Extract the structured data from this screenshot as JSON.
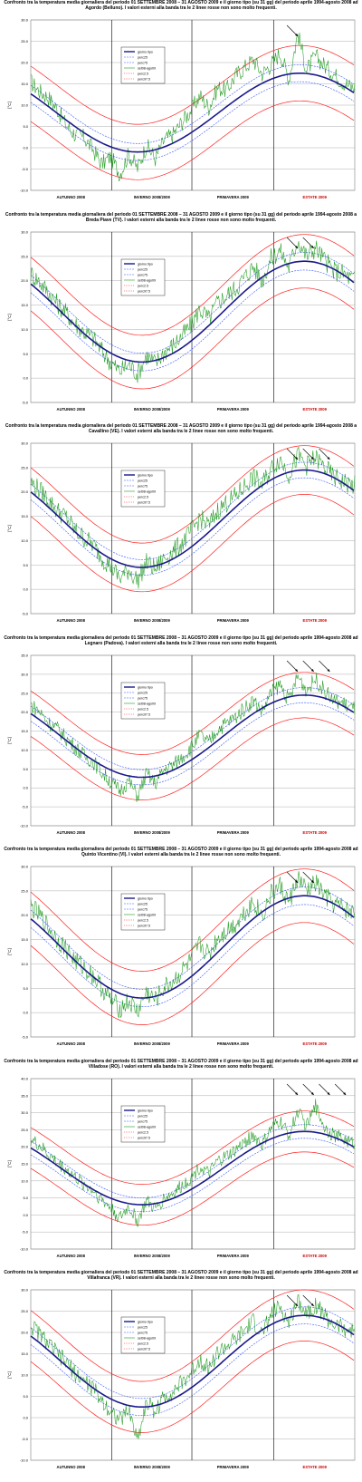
{
  "season_labels": [
    "AUTUNNO 2008",
    "INVERNO 2008/2009",
    "PRIMAVERA 2009",
    "ESTATE 2009"
  ],
  "season_colors": [
    "#000000",
    "#000000",
    "#000000",
    "#cc0000"
  ],
  "y_axis_label": "[°C]",
  "legend_labels": [
    "giorno tipo",
    "perc25",
    "perc75",
    "set08-ago09",
    "perc2.5",
    "perc97.5"
  ],
  "colors": {
    "typical": "#1a1a8c",
    "perc_inner": "#3355ff",
    "observed": "#1f9a1f",
    "perc_outer": "#ff2020",
    "grid": "#999999",
    "season_line": "#000000"
  },
  "chart_data": [
    {
      "type": "line",
      "title": "Confronto tra la temperatura media giornaliera del periodo 01 SETTEMBRE 2008 – 31 AGOSTO 2009 e il giorno tipo (su 31 gg) del periodo aprile 1994-agosto 2008 ad Agordo (Belluno). I valori esterni alla banda tra le 2 linee rosse non sono molto frequenti.",
      "yticks": [
        "30.0",
        "25.0",
        "20.0",
        "15.0",
        "10.0",
        "5.0",
        "0.0",
        "-5.0",
        "-10.0"
      ],
      "ylim": [
        -10,
        30
      ],
      "typical": {
        "summer": 17.5,
        "winter": -1.0,
        "min_day": 120,
        "max_day": 330
      },
      "band_inner": 2.0,
      "band_outer": 6.5,
      "observed_sample_per_10_days": [
        15.5,
        13.2,
        11.8,
        9.0,
        5.2,
        3.1,
        2.4,
        -0.5,
        -3.8,
        -2.0,
        -6.2,
        -1.5,
        -4.8,
        0.6,
        -2.5,
        1.8,
        3.2,
        6.1,
        8.8,
        12.2,
        9.5,
        14.1,
        13.6,
        16.9,
        18.8,
        20.7,
        17.4,
        19.6,
        22.3,
        16.1,
        26.8,
        18.2,
        21.5,
        19.3,
        17.4,
        15.6,
        14.2
      ],
      "arrows": 1
    },
    {
      "type": "line",
      "title": "Confronto tra la temperatura media giornaliera del periodo 01 SETTEMBRE 2008 – 31 AGOSTO 2009 e il giorno tipo (su 31 gg) del periodo aprile 1994-agosto 2008 a Breda Piave (TV). I valori esterni alla banda tra le 2 linee rosse non sono molto frequenti.",
      "yticks": [
        "30.0",
        "25.0",
        "20.0",
        "15.0",
        "10.0",
        "5.0",
        "0.0",
        "-5.0"
      ],
      "ylim": [
        -5,
        30
      ],
      "typical": {
        "summer": 24.0,
        "winter": 3.3,
        "min_day": 125,
        "max_day": 330
      },
      "band_inner": 1.8,
      "band_outer": 5.5,
      "observed_sample_per_10_days": [
        21.5,
        19.8,
        17.6,
        15.2,
        13.4,
        11.1,
        9.5,
        8.2,
        5.6,
        3.2,
        1.4,
        2.8,
        0.9,
        4.6,
        3.0,
        5.4,
        6.8,
        8.7,
        10.9,
        14.2,
        12.1,
        15.6,
        17.0,
        18.4,
        20.7,
        22.9,
        20.1,
        24.6,
        26.2,
        22.8,
        28.4,
        25.0,
        26.8,
        24.3,
        22.1,
        21.6,
        20.4
      ],
      "arrows": 2
    },
    {
      "type": "line",
      "title": "Confronto tra la temperatura media giornaliera del periodo 01 SETTEMBRE 2008 – 31 AGOSTO 2009 e il giorno tipo (su 31 gg) del periodo aprile 1994-agosto 2008 a Cavallino (VE). I valori esterni alla banda tra le 2 linee rosse non sono molto frequenti.",
      "yticks": [
        "30.0",
        "25.0",
        "20.0",
        "15.0",
        "10.0",
        "5.0",
        "0.0",
        "-5.0"
      ],
      "ylim": [
        -5,
        30
      ],
      "typical": {
        "summer": 24.5,
        "winter": 4.5,
        "min_day": 125,
        "max_day": 330
      },
      "band_inner": 1.6,
      "band_outer": 5.0,
      "observed_sample_per_10_days": [
        22.0,
        20.4,
        18.3,
        16.1,
        14.8,
        12.0,
        10.6,
        9.1,
        6.5,
        4.7,
        2.2,
        4.0,
        1.8,
        5.5,
        4.1,
        6.4,
        7.7,
        9.5,
        11.8,
        14.6,
        13.0,
        16.2,
        17.8,
        19.1,
        21.2,
        23.0,
        21.5,
        24.7,
        26.8,
        23.6,
        27.4,
        25.4,
        27.0,
        25.0,
        23.1,
        22.2,
        21.3
      ],
      "arrows": 3
    },
    {
      "type": "line",
      "title": "Confronto tra la temperatura media giornaliera del periodo 01 SETTEMBRE 2008 – 31 AGOSTO 2009 e il giorno tipo (su 31 gg) del periodo aprile 1994-agosto 2008 ad Legnaro (Padova). I valori esterni alla banda tra le 2 linee rosse non sono molto frequenti.",
      "yticks": [
        "35.0",
        "30.0",
        "25.0",
        "20.0",
        "15.0",
        "10.0",
        "5.0",
        "0.0",
        "-5.0",
        "-10.0"
      ],
      "ylim": [
        -10,
        35
      ],
      "typical": {
        "summer": 24.5,
        "winter": 2.8,
        "min_day": 125,
        "max_day": 330
      },
      "band_inner": 2.0,
      "band_outer": 6.0,
      "observed_sample_per_10_days": [
        22.0,
        20.1,
        17.2,
        15.6,
        13.0,
        10.8,
        8.4,
        7.0,
        4.1,
        1.5,
        -0.8,
        1.9,
        -2.2,
        3.6,
        1.2,
        4.8,
        6.0,
        8.2,
        10.6,
        14.0,
        11.8,
        15.5,
        17.1,
        18.7,
        21.0,
        23.1,
        20.2,
        25.0,
        27.3,
        23.0,
        29.5,
        25.8,
        28.8,
        25.6,
        23.0,
        22.5,
        21.0
      ],
      "arrows": 3
    },
    {
      "type": "line",
      "title": "Confronto tra la temperatura media giornaliera del periodo 01 SETTEMBRE 2008 – 31 AGOSTO 2009 e il giorno tipo (su 31 gg) del periodo aprile 1994-agosto 2008 ad Quinto Vicentino (VI). I valori esterni alla banda tra le 2 linee rosse non sono molto frequenti.",
      "yticks": [
        "30.0",
        "25.0",
        "20.0",
        "15.0",
        "10.0",
        "5.0",
        "0.0",
        "-5.0"
      ],
      "ylim": [
        -5,
        30
      ],
      "typical": {
        "summer": 24.0,
        "winter": 3.0,
        "min_day": 125,
        "max_day": 330
      },
      "band_inner": 1.8,
      "band_outer": 5.5,
      "observed_sample_per_10_days": [
        21.8,
        19.9,
        17.5,
        15.0,
        13.1,
        10.7,
        9.2,
        7.6,
        5.0,
        2.6,
        0.8,
        2.3,
        0.2,
        4.1,
        2.5,
        5.1,
        6.4,
        8.5,
        10.7,
        14.0,
        11.9,
        15.4,
        16.9,
        18.2,
        20.6,
        22.8,
        19.9,
        24.3,
        26.0,
        22.5,
        27.6,
        24.9,
        26.6,
        24.0,
        22.3,
        21.6,
        20.5
      ],
      "arrows": 2
    },
    {
      "type": "line",
      "title": "Confronto tra la temperatura media giornaliera del periodo 01 SETTEMBRE 2008 – 31 AGOSTO 2009 e il giorno tipo (su 31 gg) del periodo aprile 1994-agosto 2008 ad Villadose (RO). I valori esterni alla banda tra le 2 linee rosse non sono molto frequenti.",
      "yticks": [
        "40.0",
        "35.0",
        "30.0",
        "25.0",
        "20.0",
        "15.0",
        "10.0",
        "5.0",
        "0.0",
        "-5.0",
        "-10.0"
      ],
      "ylim": [
        -10,
        40
      ],
      "typical": {
        "summer": 24.5,
        "winter": 3.0,
        "min_day": 125,
        "max_day": 330
      },
      "band_inner": 2.0,
      "band_outer": 6.0,
      "observed_sample_per_10_days": [
        22.1,
        20.3,
        17.6,
        15.2,
        13.4,
        11.0,
        8.9,
        7.3,
        4.4,
        2.0,
        -1.0,
        2.4,
        -1.8,
        4.0,
        1.6,
        5.0,
        6.3,
        8.6,
        10.9,
        14.2,
        12.0,
        15.7,
        17.2,
        18.9,
        21.3,
        23.4,
        20.5,
        25.3,
        27.6,
        23.4,
        30.5,
        26.1,
        32.0,
        25.9,
        23.3,
        22.6,
        21.2
      ],
      "arrows": 4
    },
    {
      "type": "line",
      "title": "Confronto tra la temperatura media giornaliera del periodo 01 SETTEMBRE 2008 – 31 AGOSTO 2009 e il giorno tipo (su 31 gg) del periodo aprile 1994-agosto 2008 ad Villafranca (VR). I valori esterni alla banda tra le 2 linee rosse non sono molto frequenti.",
      "yticks": [
        "30.0",
        "25.0",
        "20.0",
        "15.0",
        "10.0",
        "5.0",
        "0.0",
        "-5.0",
        "-10.0"
      ],
      "ylim": [
        -10,
        30
      ],
      "typical": {
        "summer": 24.0,
        "winter": 2.5,
        "min_day": 125,
        "max_day": 330
      },
      "band_inner": 2.0,
      "band_outer": 6.0,
      "observed_sample_per_10_days": [
        21.6,
        19.7,
        17.2,
        14.9,
        12.8,
        10.4,
        8.6,
        6.9,
        4.0,
        1.6,
        -0.6,
        1.8,
        -5.0,
        3.6,
        1.5,
        4.9,
        6.2,
        8.2,
        10.5,
        13.8,
        11.6,
        15.2,
        16.8,
        18.1,
        20.4,
        22.5,
        19.6,
        24.1,
        26.0,
        22.0,
        27.8,
        24.6,
        26.5,
        24.0,
        21.9,
        21.1,
        20.2
      ],
      "arrows": 2
    }
  ]
}
